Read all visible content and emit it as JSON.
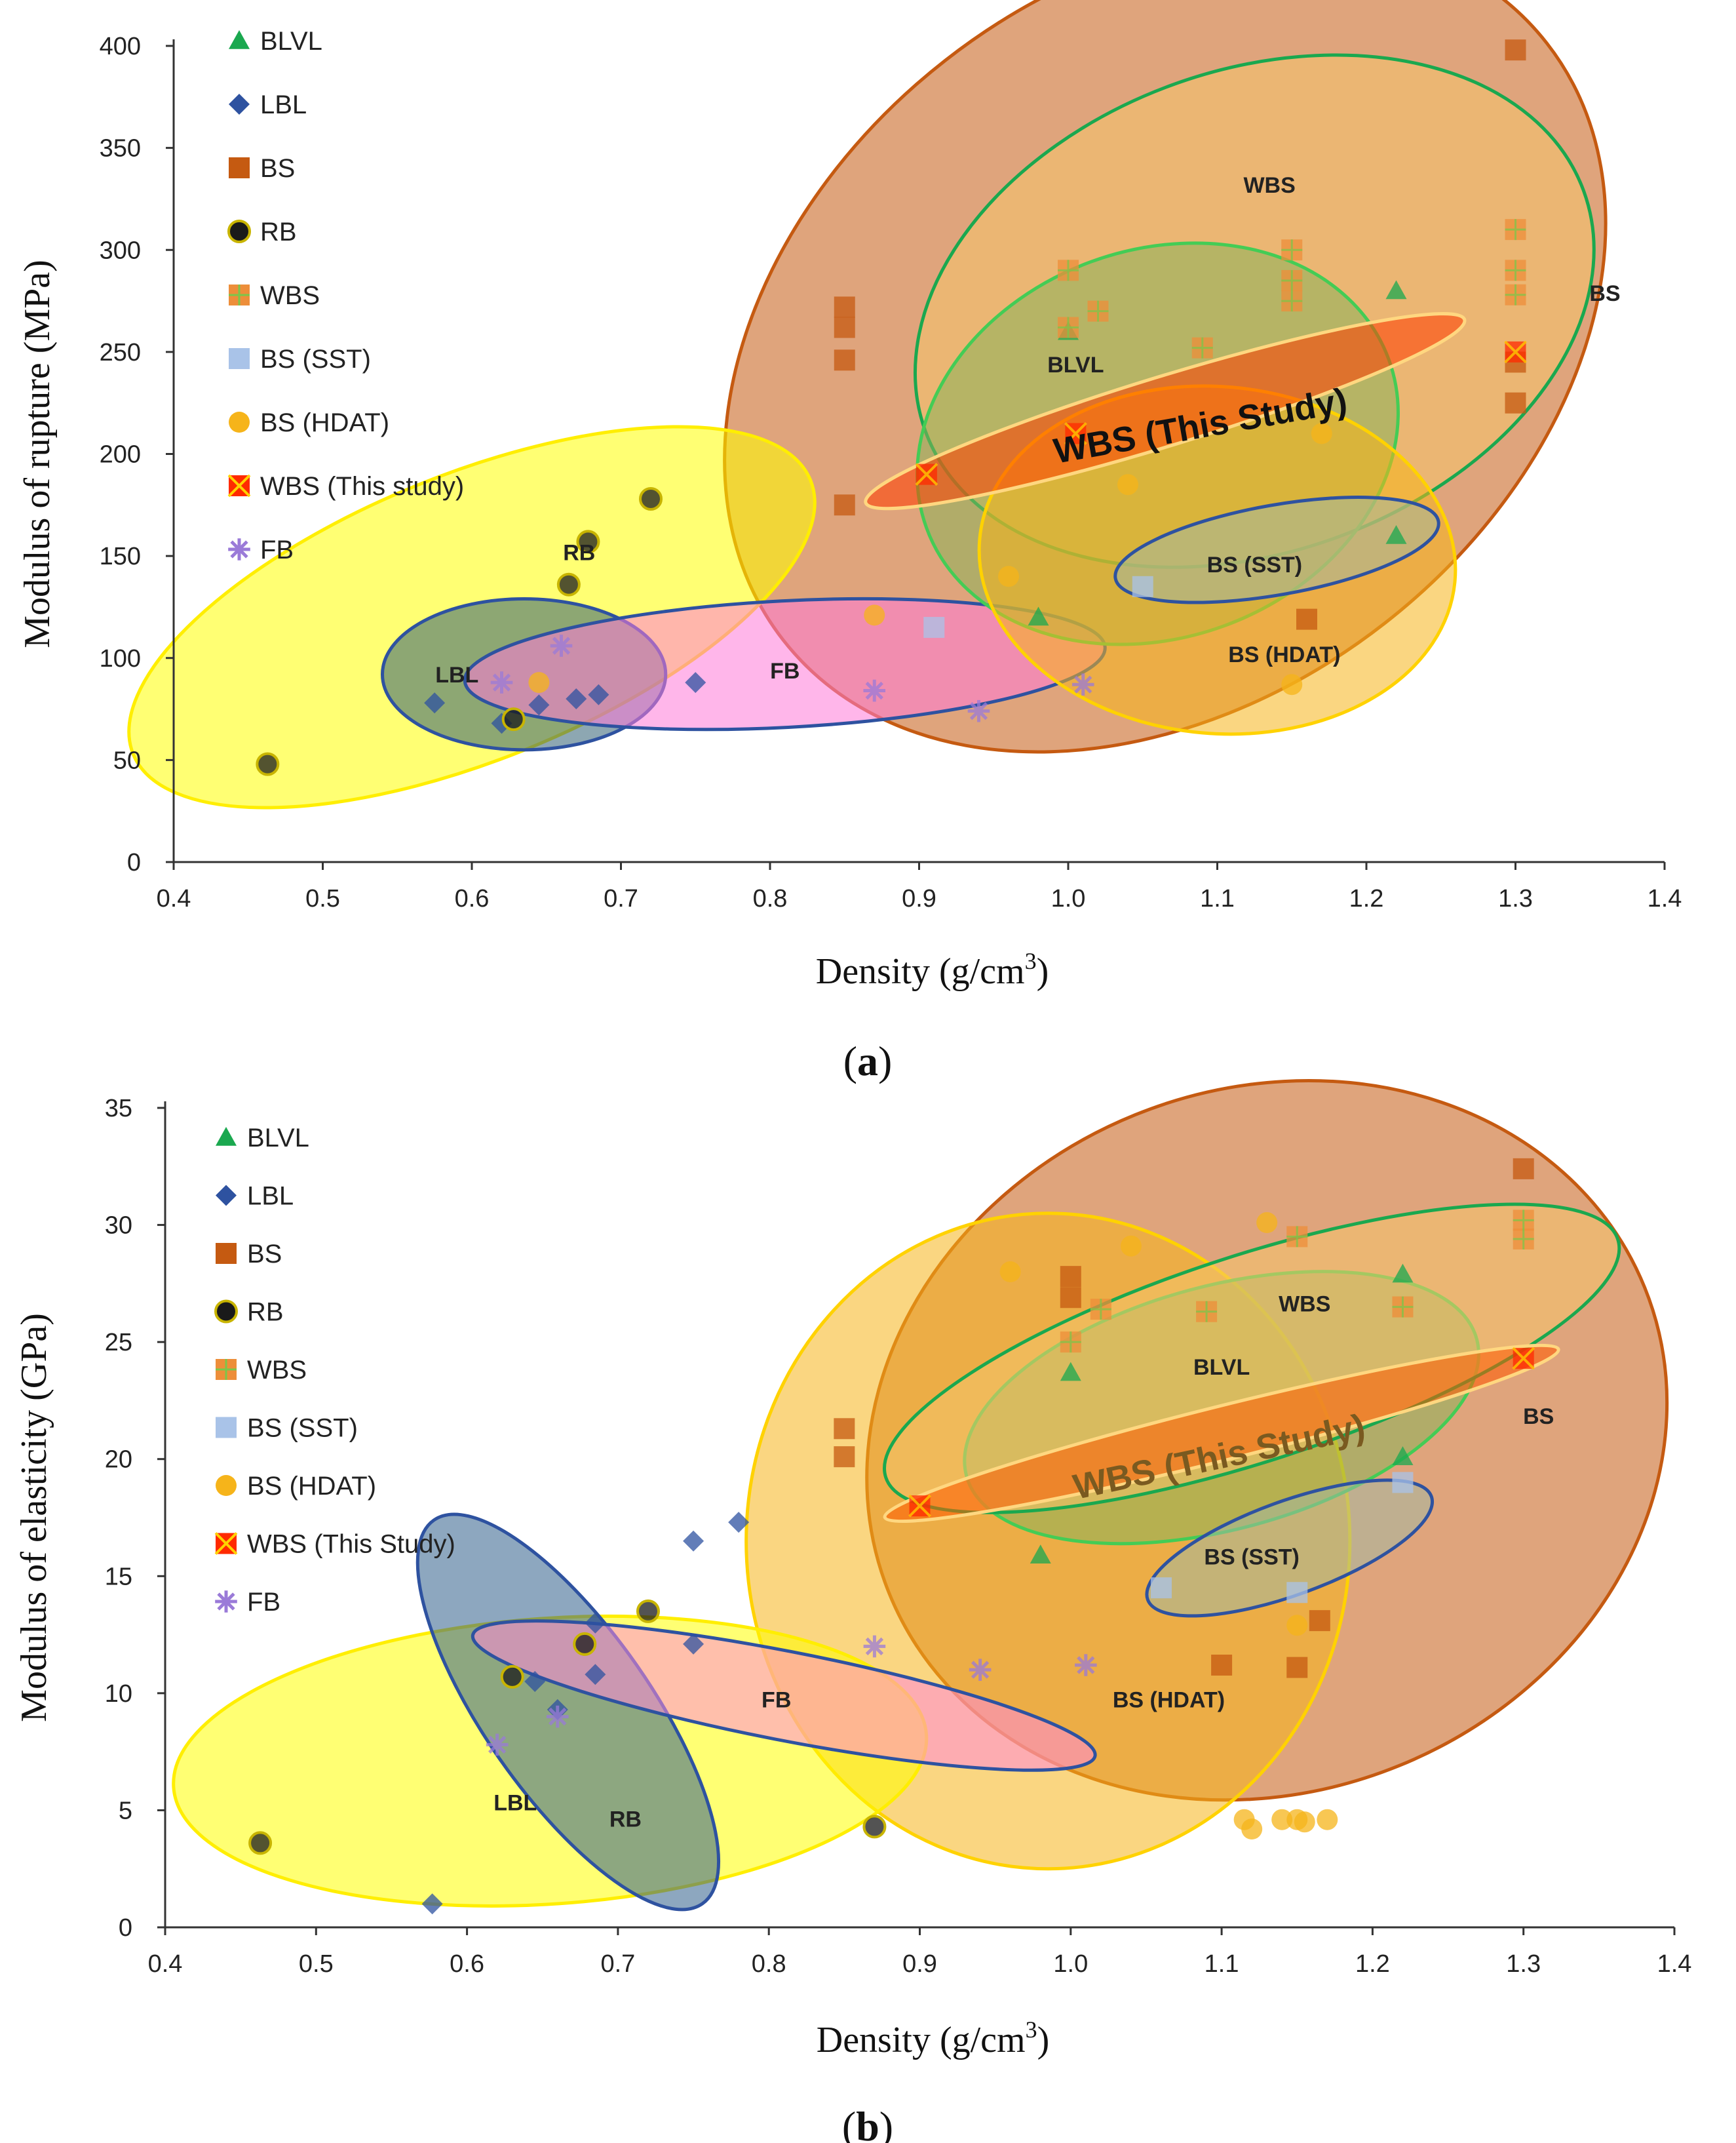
{
  "chart_data": [
    {
      "id": "a",
      "type": "scatter",
      "caption_letter": "a",
      "xlabel": "Density (g/cm",
      "xlabel_sup": "3",
      "xlabel_close": ")",
      "ylabel": "Modulus of rupture (MPa)",
      "xlim": [
        0.4,
        1.4
      ],
      "ylim": [
        0,
        400
      ],
      "xticks": [
        "0.4",
        "0.5",
        "0.6",
        "0.7",
        "0.8",
        "0.9",
        "1.0",
        "1.1",
        "1.2",
        "1.3",
        "1.4"
      ],
      "yticks": [
        "0",
        "50",
        "100",
        "150",
        "200",
        "250",
        "300",
        "350",
        "400"
      ],
      "legend": [
        {
          "key": "BLVL",
          "label": "BLVL",
          "marker": "triangle",
          "color": "#1aa84f"
        },
        {
          "key": "LBL",
          "label": "LBL",
          "marker": "diamond",
          "color": "#2e52a0"
        },
        {
          "key": "BS",
          "label": "BS",
          "marker": "square",
          "color": "#c55a11"
        },
        {
          "key": "RB",
          "label": "RB",
          "marker": "circle-dark",
          "color": "#1a1a1a"
        },
        {
          "key": "WBS",
          "label": "WBS",
          "marker": "square-plus",
          "color": "#ed8e3a"
        },
        {
          "key": "BSSST",
          "label": "BS (SST)",
          "marker": "square-light",
          "color": "#a9c3e8"
        },
        {
          "key": "BSHDAT",
          "label": "BS (HDAT)",
          "marker": "circle",
          "color": "#f6b41a"
        },
        {
          "key": "WBSTS",
          "label": "WBS (This study)",
          "marker": "square-x",
          "color": "#ff2a00"
        },
        {
          "key": "FB",
          "label": "FB",
          "marker": "star",
          "color": "#9a7ad8"
        }
      ],
      "series": [
        {
          "key": "BLVL",
          "points": [
            [
              0.98,
              120
            ],
            [
              1.22,
              280
            ],
            [
              1.0,
              260
            ],
            [
              1.22,
              160
            ]
          ]
        },
        {
          "key": "LBL",
          "points": [
            [
              0.575,
              78
            ],
            [
              0.62,
              68
            ],
            [
              0.645,
              77
            ],
            [
              0.67,
              80
            ],
            [
              0.685,
              82
            ],
            [
              0.75,
              88
            ]
          ]
        },
        {
          "key": "BS",
          "points": [
            [
              0.85,
              272
            ],
            [
              0.85,
              262
            ],
            [
              0.85,
              246
            ],
            [
              0.85,
              175
            ],
            [
              1.3,
              398
            ],
            [
              1.3,
              245
            ],
            [
              1.3,
              225
            ],
            [
              1.16,
              119
            ]
          ]
        },
        {
          "key": "RB",
          "points": [
            [
              0.463,
              48
            ],
            [
              0.628,
              70
            ],
            [
              0.665,
              136
            ],
            [
              0.678,
              157
            ],
            [
              0.72,
              178
            ]
          ]
        },
        {
          "key": "WBS",
          "points": [
            [
              1.0,
              290
            ],
            [
              1.0,
              262
            ],
            [
              1.02,
              270
            ],
            [
              1.09,
              252
            ],
            [
              1.15,
              300
            ],
            [
              1.15,
              285
            ],
            [
              1.15,
              275
            ],
            [
              1.3,
              310
            ],
            [
              1.3,
              290
            ],
            [
              1.3,
              278
            ]
          ]
        },
        {
          "key": "BSSST",
          "points": [
            [
              0.91,
              115
            ],
            [
              1.05,
              135
            ]
          ]
        },
        {
          "key": "BSHDAT",
          "points": [
            [
              0.96,
              140
            ],
            [
              1.04,
              185
            ],
            [
              1.17,
              210
            ],
            [
              1.15,
              87
            ],
            [
              0.87,
              121
            ],
            [
              0.645,
              88
            ]
          ]
        },
        {
          "key": "WBSTS",
          "points": [
            [
              0.905,
              190
            ],
            [
              1.005,
              210
            ],
            [
              1.3,
              250
            ]
          ]
        },
        {
          "key": "FB",
          "points": [
            [
              0.62,
              88
            ],
            [
              0.66,
              106
            ],
            [
              0.87,
              84
            ],
            [
              0.94,
              74
            ],
            [
              1.01,
              87
            ]
          ]
        }
      ],
      "regions": [
        {
          "name": "region-bs",
          "label": "BS",
          "cx": 1.065,
          "cy": 255,
          "rx": 0.325,
          "ry": 175,
          "rot": 38,
          "fill": "#c55a11",
          "stroke": "#c55a11",
          "label_x": 1.36,
          "label_y": 275
        },
        {
          "name": "region-rb",
          "label": "RB",
          "cx": 0.6,
          "cy": 120,
          "rx": 0.245,
          "ry": 70,
          "rot": 22,
          "fill": "#ffff00",
          "stroke": "#ffee00",
          "label_x": 0.672,
          "label_y": 148
        },
        {
          "name": "region-lbl",
          "label": "LBL",
          "cx": 0.635,
          "cy": 92,
          "rx": 0.095,
          "ry": 37,
          "rot": 0,
          "fill": "#2f5f73",
          "stroke": "#2e52a0",
          "label_x": 0.59,
          "label_y": 88
        },
        {
          "name": "region-fb",
          "label": "FB",
          "cx": 0.81,
          "cy": 97,
          "rx": 0.215,
          "ry": 31,
          "rot": 3,
          "fill": "#ff7ad8",
          "stroke": "#2e52a0",
          "label_x": 0.81,
          "label_y": 90
        },
        {
          "name": "region-wbs",
          "label": "WBS",
          "cx": 1.125,
          "cy": 270,
          "rx": 0.235,
          "ry": 118,
          "rot": 20,
          "fill": "#f4c46c",
          "stroke": "#1aa84f",
          "label_x": 1.135,
          "label_y": 328
        },
        {
          "name": "region-blvl",
          "label": "BLVL",
          "cx": 1.06,
          "cy": 205,
          "rx": 0.165,
          "ry": 95,
          "rot": 20,
          "fill": "#8bb35a",
          "stroke": "#44cc55",
          "label_x": 1.005,
          "label_y": 240
        },
        {
          "name": "region-hdat",
          "label": "BS (HDAT)",
          "cx": 1.1,
          "cy": 148,
          "rx": 0.16,
          "ry": 85,
          "rot": -5,
          "fill": "#f6b41a",
          "stroke": "#ffd200",
          "label_x": 1.145,
          "label_y": 98
        },
        {
          "name": "region-sst",
          "label": "BS (SST)",
          "cx": 1.14,
          "cy": 153,
          "rx": 0.11,
          "ry": 22,
          "rot": 10,
          "fill": "#a4b8a0",
          "stroke": "#2e52a0",
          "label_x": 1.125,
          "label_y": 142
        },
        {
          "name": "region-wbs-ts",
          "label": "WBS (This Study)",
          "cx": 1.065,
          "cy": 221,
          "rx": 0.21,
          "ry": 17,
          "rot": 17,
          "fill": "#ff3c00",
          "stroke": "#ffd780",
          "label_x": 1.09,
          "label_y": 208,
          "label_rot": -10
        }
      ]
    },
    {
      "id": "b",
      "type": "scatter",
      "caption_letter": "b",
      "xlabel": "Density (g/cm",
      "xlabel_sup": "3",
      "xlabel_close": ")",
      "ylabel": "Modulus of elasticity (GPa)",
      "xlim": [
        0.4,
        1.4
      ],
      "ylim": [
        0,
        35
      ],
      "xticks": [
        "0.4",
        "0.5",
        "0.6",
        "0.7",
        "0.8",
        "0.9",
        "1.0",
        "1.1",
        "1.2",
        "1.3",
        "1.4"
      ],
      "yticks": [
        "0",
        "5",
        "10",
        "15",
        "20",
        "25",
        "30",
        "35"
      ],
      "legend": [
        {
          "key": "BLVL",
          "label": "BLVL",
          "marker": "triangle",
          "color": "#1aa84f"
        },
        {
          "key": "LBL",
          "label": "LBL",
          "marker": "diamond",
          "color": "#2e52a0"
        },
        {
          "key": "BS",
          "label": "BS",
          "marker": "square",
          "color": "#c55a11"
        },
        {
          "key": "RB",
          "label": "RB",
          "marker": "circle-dark",
          "color": "#1a1a1a"
        },
        {
          "key": "WBS",
          "label": "WBS",
          "marker": "square-plus",
          "color": "#ed8e3a"
        },
        {
          "key": "BSSST",
          "label": "BS (SST)",
          "marker": "square-light",
          "color": "#a9c3e8"
        },
        {
          "key": "BSHDAT",
          "label": "BS (HDAT)",
          "marker": "circle",
          "color": "#f6b41a"
        },
        {
          "key": "WBSTS",
          "label": "WBS (This Study)",
          "marker": "square-x",
          "color": "#ff2a00"
        },
        {
          "key": "FB",
          "label": "FB",
          "marker": "star",
          "color": "#9a7ad8"
        }
      ],
      "series": [
        {
          "key": "BLVL",
          "points": [
            [
              0.98,
              15.9
            ],
            [
              1.0,
              23.7
            ],
            [
              1.22,
              20.1
            ],
            [
              1.22,
              27.9
            ]
          ]
        },
        {
          "key": "LBL",
          "points": [
            [
              0.577,
              1.0
            ],
            [
              0.645,
              10.5
            ],
            [
              0.66,
              9.3
            ],
            [
              0.685,
              13.0
            ],
            [
              0.685,
              10.8
            ],
            [
              0.75,
              12.1
            ],
            [
              0.75,
              16.5
            ],
            [
              0.78,
              17.3
            ]
          ]
        },
        {
          "key": "BS",
          "points": [
            [
              0.85,
              21.3
            ],
            [
              0.85,
              20.1
            ],
            [
              1.0,
              27.8
            ],
            [
              1.0,
              26.9
            ],
            [
              1.1,
              11.2
            ],
            [
              1.15,
              11.1
            ],
            [
              1.165,
              13.1
            ],
            [
              1.3,
              32.4
            ]
          ]
        },
        {
          "key": "RB",
          "points": [
            [
              0.463,
              3.6
            ],
            [
              0.63,
              10.7
            ],
            [
              0.678,
              12.1
            ],
            [
              0.72,
              13.5
            ],
            [
              0.87,
              4.3
            ]
          ]
        },
        {
          "key": "WBS",
          "points": [
            [
              1.0,
              25.0
            ],
            [
              1.02,
              26.4
            ],
            [
              1.09,
              26.3
            ],
            [
              1.15,
              29.5
            ],
            [
              1.3,
              30.2
            ],
            [
              1.3,
              29.4
            ],
            [
              1.22,
              26.5
            ]
          ]
        },
        {
          "key": "BSSST",
          "points": [
            [
              1.06,
              14.5
            ],
            [
              1.15,
              14.3
            ],
            [
              1.22,
              19.0
            ]
          ]
        },
        {
          "key": "BSHDAT",
          "points": [
            [
              0.96,
              28.0
            ],
            [
              1.04,
              29.1
            ],
            [
              1.13,
              30.1
            ],
            [
              1.115,
              4.6
            ],
            [
              1.12,
              4.2
            ],
            [
              1.14,
              4.6
            ],
            [
              1.15,
              4.6
            ],
            [
              1.155,
              4.5
            ],
            [
              1.17,
              4.6
            ],
            [
              1.15,
              12.9
            ]
          ]
        },
        {
          "key": "WBSTS",
          "points": [
            [
              0.9,
              18.0
            ],
            [
              1.3,
              24.3
            ]
          ]
        },
        {
          "key": "FB",
          "points": [
            [
              0.62,
              7.8
            ],
            [
              0.66,
              9.0
            ],
            [
              0.87,
              12.0
            ],
            [
              0.94,
              11.0
            ],
            [
              1.01,
              11.2
            ]
          ]
        }
      ],
      "regions": [
        {
          "name": "region-bs",
          "label": "BS",
          "cx": 1.13,
          "cy": 20.8,
          "rx": 0.27,
          "ry": 15.0,
          "rot": 22,
          "fill": "#c55a11",
          "stroke": "#c55a11",
          "label_x": 1.31,
          "label_y": 21.5
        },
        {
          "name": "region-hdat",
          "label": "BS (HDAT)",
          "cx": 0.985,
          "cy": 16.5,
          "rx": 0.2,
          "ry": 14.0,
          "rot": 0,
          "fill": "#f6b41a",
          "stroke": "#ffd200",
          "label_x": 1.065,
          "label_y": 9.4
        },
        {
          "name": "region-rb",
          "label": "RB",
          "cx": 0.655,
          "cy": 7.1,
          "rx": 0.25,
          "ry": 6.1,
          "rot": 4,
          "fill": "#ffff00",
          "stroke": "#ffee00",
          "label_x": 0.705,
          "label_y": 4.3
        },
        {
          "name": "region-lbl",
          "label": "LBL",
          "cx": 0.667,
          "cy": 9.2,
          "rx": 0.055,
          "ry": 10.0,
          "rot": 35,
          "fill": "#2f5f8a",
          "stroke": "#2e52a0",
          "label_x": 0.632,
          "label_y": 5.0
        },
        {
          "name": "region-fb",
          "label": "FB",
          "cx": 0.81,
          "cy": 9.9,
          "rx": 0.21,
          "ry": 1.9,
          "rot": -11,
          "fill": "#ff8ad8",
          "stroke": "#2e52a0",
          "label_x": 0.805,
          "label_y": 9.4
        },
        {
          "name": "region-blvl",
          "label": "BLVL",
          "cx": 1.1,
          "cy": 22.2,
          "rx": 0.175,
          "ry": 5.2,
          "rot": 15,
          "fill": "#8bb35a",
          "stroke": "#44cc55",
          "label_x": 1.1,
          "label_y": 23.6
        },
        {
          "name": "region-wbs",
          "label": "WBS",
          "cx": 1.12,
          "cy": 24.3,
          "rx": 0.255,
          "ry": 4.4,
          "rot": 18,
          "fill": "#f4c46c",
          "stroke": "#1aa84f",
          "label_x": 1.155,
          "label_y": 26.3
        },
        {
          "name": "region-wbs-ts",
          "label": "WBS (This Study)",
          "cx": 1.1,
          "cy": 21.1,
          "rx": 0.23,
          "ry": 1.15,
          "rot": 14,
          "fill": "#ff5a00",
          "stroke": "#ffd780",
          "label_x": 1.1,
          "label_y": 19.6,
          "label_rot": -12
        },
        {
          "name": "region-sst",
          "label": "BS (SST)",
          "cx": 1.145,
          "cy": 16.2,
          "rx": 0.1,
          "ry": 2.0,
          "rot": 20,
          "fill": "#a4b8a0",
          "stroke": "#2e52a0",
          "label_x": 1.12,
          "label_y": 15.5
        }
      ]
    }
  ]
}
